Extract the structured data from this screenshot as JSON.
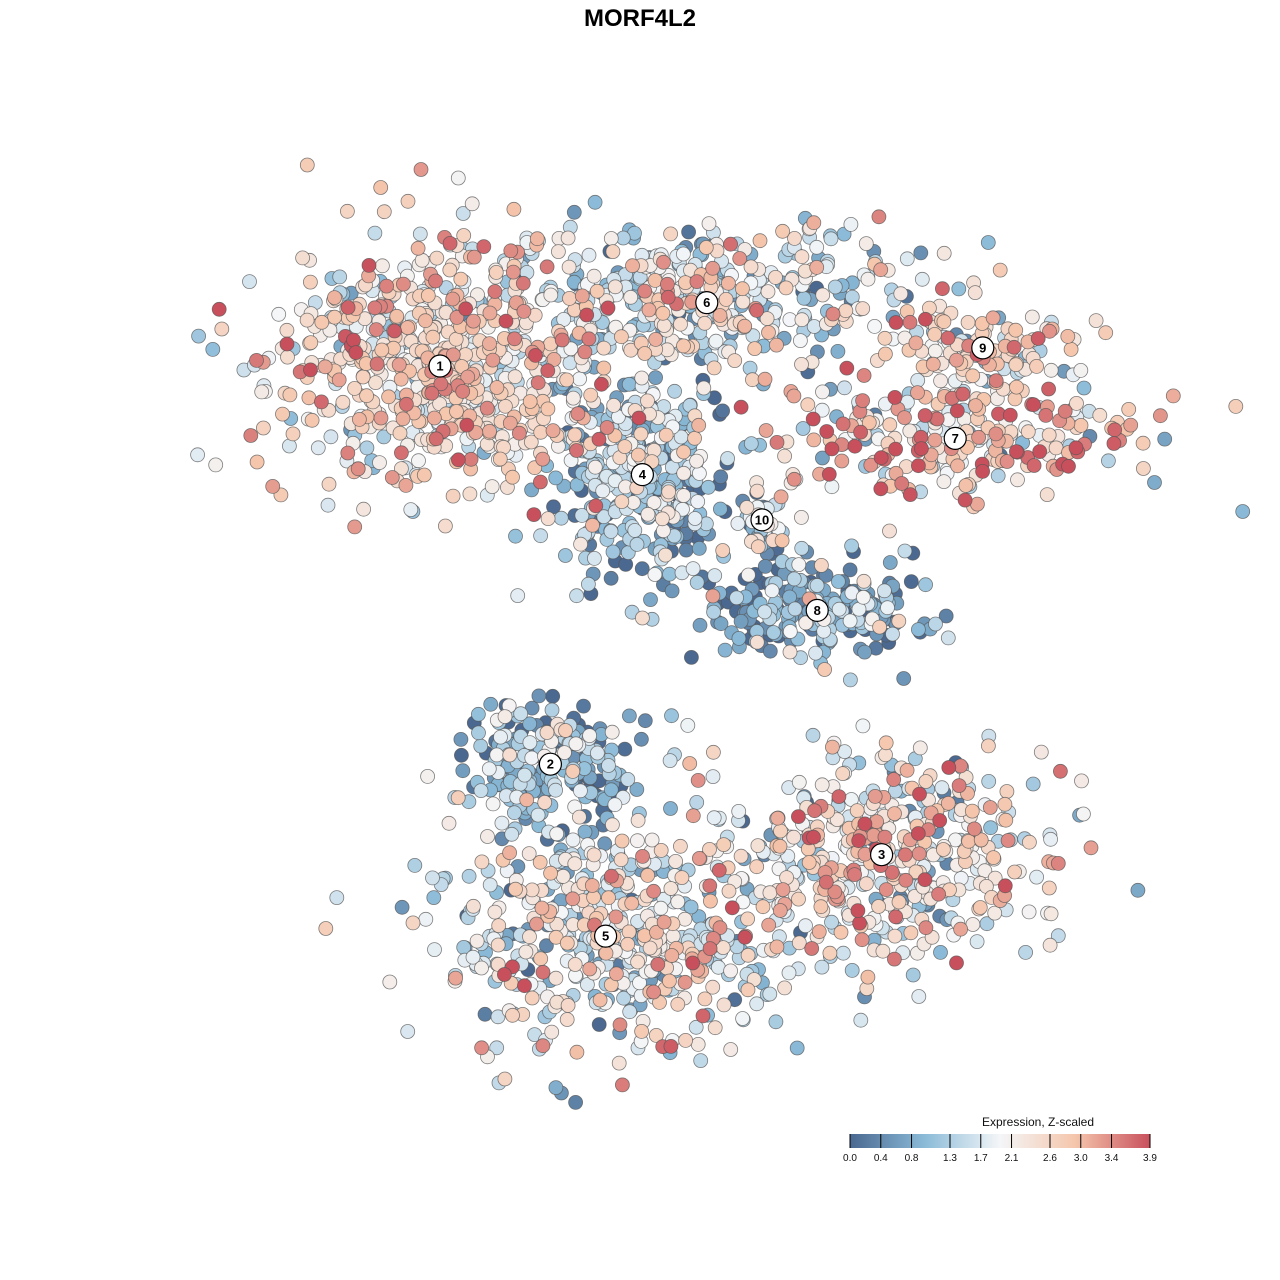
{
  "chart_data": {
    "type": "scatter",
    "title": "MORF4L2",
    "colorbar": {
      "title": "Expression, Z-scaled",
      "range": [
        0.0,
        3.9
      ],
      "ticks": [
        "0.0",
        "0.4",
        "0.8",
        "1.3",
        "1.7",
        "2.1",
        "2.6",
        "3.0",
        "3.4",
        "3.9"
      ],
      "tick_values": [
        0.0,
        0.4,
        0.8,
        1.3,
        1.7,
        2.1,
        2.6,
        3.0,
        3.4,
        3.9
      ],
      "palette": [
        "#4a6890",
        "#8bbbd8",
        "#f4f6f8",
        "#f5c6ac",
        "#c8505d"
      ],
      "placement": "bottom-right"
    },
    "axes": {
      "visible": false,
      "xlim": [
        -50,
        50
      ],
      "ylim": [
        -50,
        50
      ],
      "grid": false
    },
    "clusters": [
      {
        "label": "1",
        "x": -25,
        "y": 30,
        "mean_expr": 2.4
      },
      {
        "label": "2",
        "x": -13,
        "y": -14,
        "mean_expr": 1.0
      },
      {
        "label": "3",
        "x": 23,
        "y": -24,
        "mean_expr": 2.2
      },
      {
        "label": "4",
        "x": -3,
        "y": 18,
        "mean_expr": 1.1
      },
      {
        "label": "5",
        "x": -7,
        "y": -33,
        "mean_expr": 1.9
      },
      {
        "label": "6",
        "x": 4,
        "y": 37,
        "mean_expr": 1.8
      },
      {
        "label": "7",
        "x": 31,
        "y": 22,
        "mean_expr": 2.6
      },
      {
        "label": "8",
        "x": 16,
        "y": 3,
        "mean_expr": 0.7
      },
      {
        "label": "9",
        "x": 34,
        "y": 32,
        "mean_expr": 2.3
      },
      {
        "label": "10",
        "x": 10,
        "y": 13,
        "mean_expr": 1.4
      }
    ]
  }
}
